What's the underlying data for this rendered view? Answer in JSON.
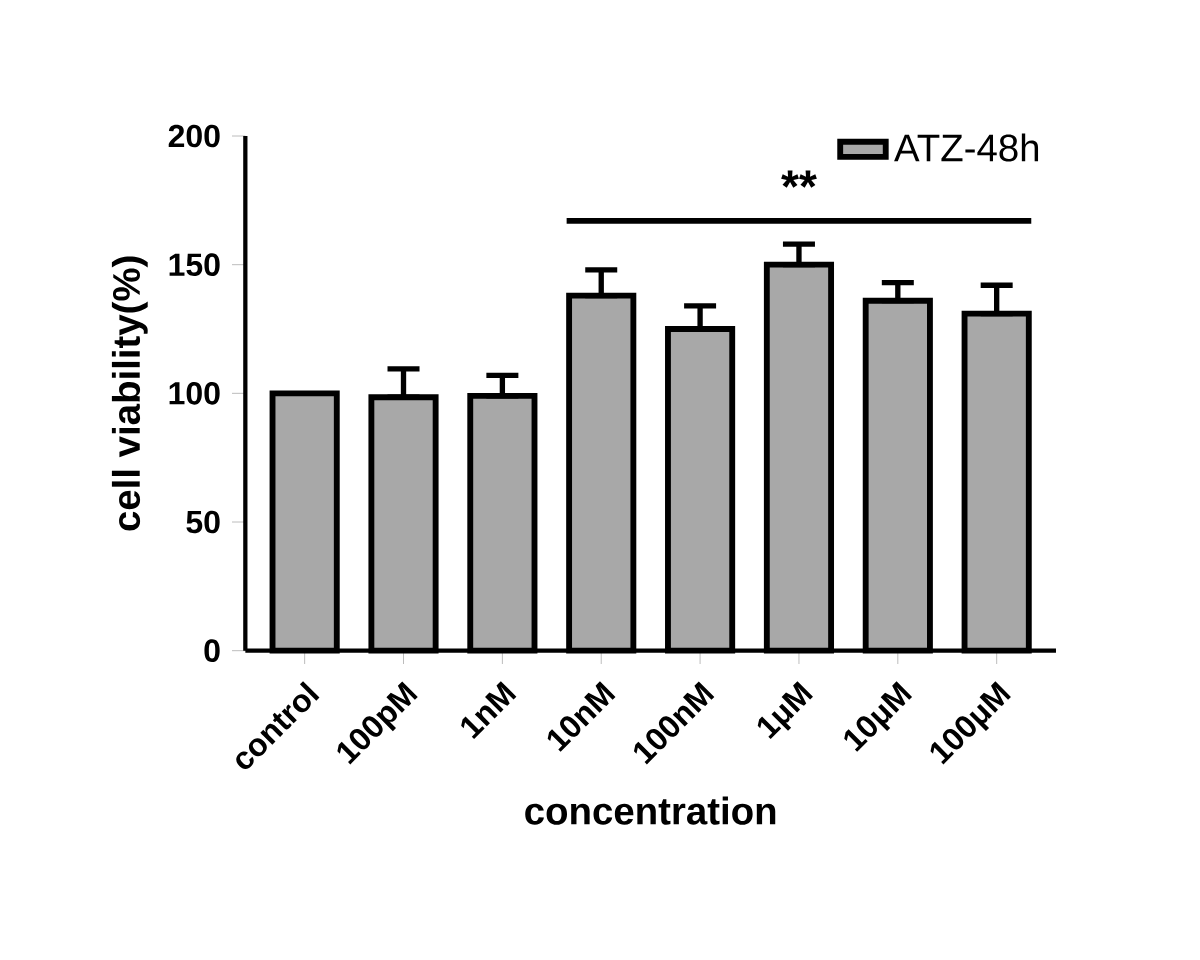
{
  "chart_data": {
    "type": "bar",
    "xlabel": "concentration",
    "ylabel": "cell viability(%)",
    "categories": [
      "control",
      "100pM",
      "1nM",
      "10nM",
      "100nM",
      "1μM",
      "10μM",
      "100μM"
    ],
    "series": [
      {
        "name": "ATZ-48h",
        "color": "#a8a8a8",
        "values": [
          100,
          98.5,
          99,
          138,
          125,
          150,
          136,
          131
        ],
        "errors": [
          null,
          [
            98.5,
            109.5
          ],
          [
            99,
            107
          ],
          [
            138,
            148
          ],
          [
            125,
            134
          ],
          [
            150,
            158
          ],
          [
            136,
            143
          ],
          [
            131,
            142
          ]
        ]
      }
    ],
    "ylim": [
      0,
      200
    ],
    "yticks": [
      0,
      50,
      100,
      150,
      200
    ],
    "annotations": [
      "**"
    ],
    "legend": "top right",
    "grid": false
  }
}
